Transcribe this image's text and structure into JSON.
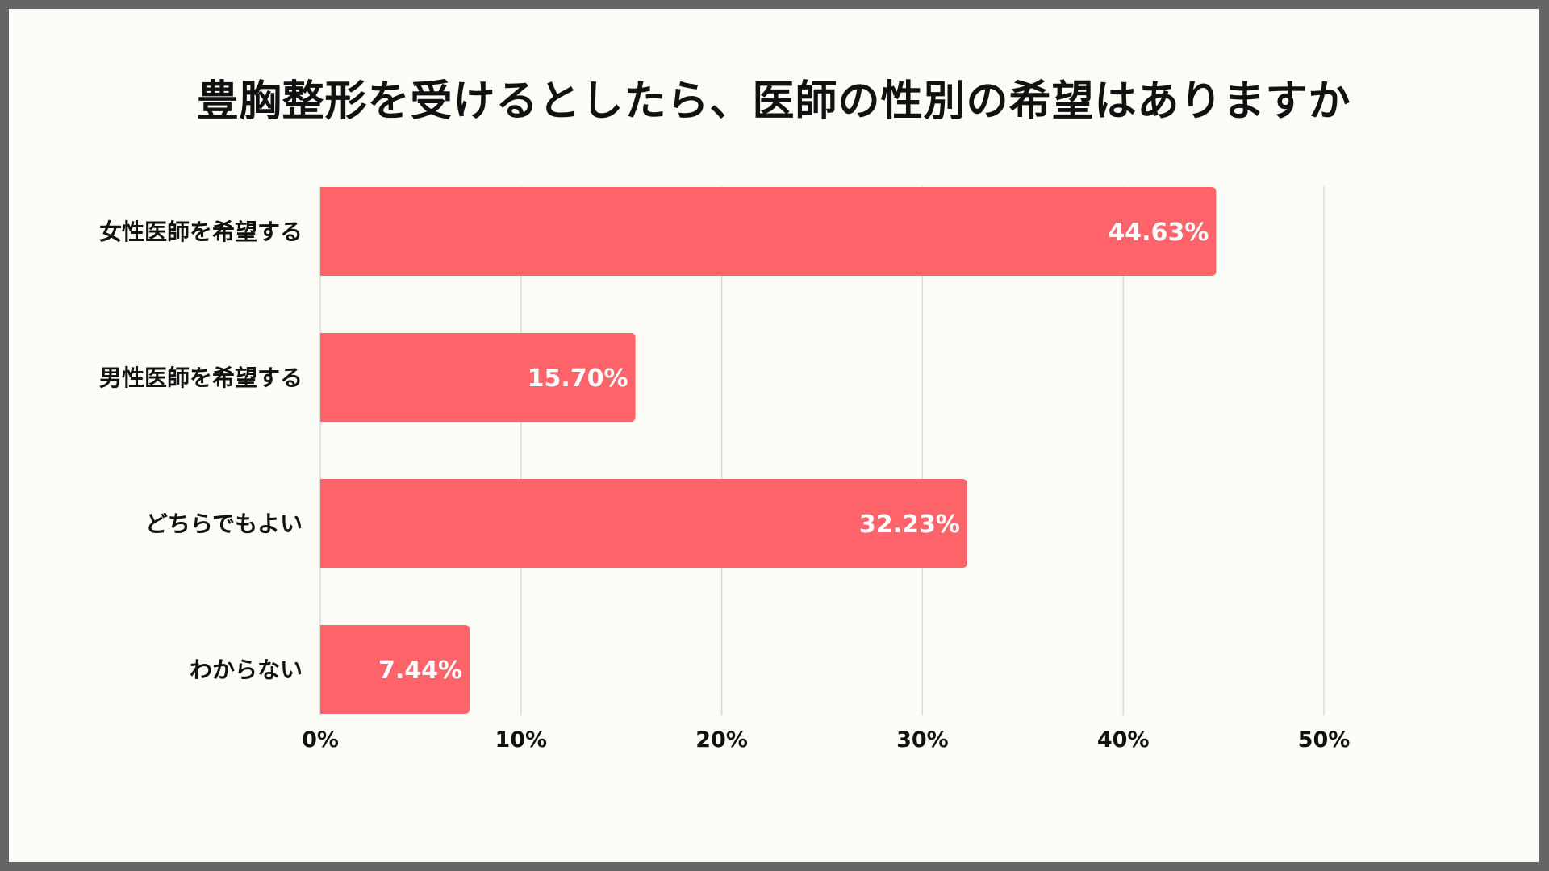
{
  "chart_data": {
    "type": "bar",
    "orientation": "horizontal",
    "title": "豊胸整形を受けるとしたら、医師の性別の希望はありますか",
    "categories": [
      "女性医師を希望する",
      "男性医師を希望する",
      "どちらでもよい",
      "わからない"
    ],
    "values": [
      44.63,
      15.7,
      32.23,
      7.44
    ],
    "data_labels": [
      "44.63%",
      "15.70%",
      "32.23%",
      "7.44%"
    ],
    "xlim": [
      0,
      50
    ],
    "xticks": [
      0,
      10,
      20,
      30,
      40,
      50
    ],
    "xtick_labels": [
      "0%",
      "10%",
      "20%",
      "30%",
      "40%",
      "50%"
    ],
    "grid": true,
    "legend": "none",
    "bar_color": "#ff646a",
    "grid_color": "#d9d9d9",
    "background": "#fdfdf8"
  }
}
